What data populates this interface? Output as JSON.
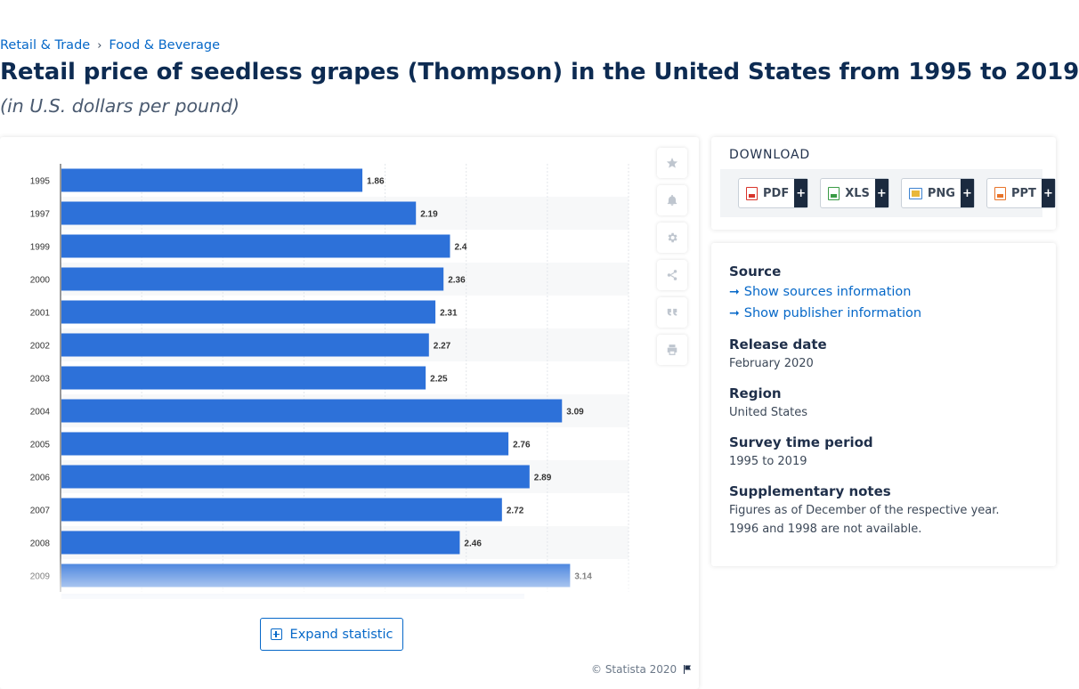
{
  "breadcrumb": {
    "items": [
      "Retail & Trade",
      "Food & Beverage"
    ],
    "separator": "›"
  },
  "page": {
    "title": "Retail price of seedless grapes (Thompson) in the United States from 1995 to 2019",
    "subtitle": "(in U.S. dollars per pound)"
  },
  "chart_data": {
    "type": "bar",
    "orientation": "horizontal",
    "categories": [
      "1995",
      "1997",
      "1999",
      "2000",
      "2001",
      "2002",
      "2003",
      "2004",
      "2005",
      "2006",
      "2007",
      "2008",
      "2009"
    ],
    "values": [
      1.86,
      2.19,
      2.4,
      2.36,
      2.31,
      2.27,
      2.25,
      3.09,
      2.76,
      2.89,
      2.72,
      2.46,
      3.14
    ],
    "value_labels": [
      "1.86",
      "2.19",
      "2.4",
      "2.36",
      "2.31",
      "2.27",
      "2.25",
      "3.09",
      "2.76",
      "2.89",
      "2.72",
      "2.46",
      "3.14"
    ],
    "xlim": [
      0,
      3.5
    ],
    "grid": true,
    "bar_color": "#2d71d9",
    "truncated": true
  },
  "toolbar": {
    "icons": [
      "star-icon",
      "bell-icon",
      "gear-icon",
      "share-icon",
      "quote-icon",
      "print-icon"
    ]
  },
  "expand_button": {
    "label": "Expand statistic"
  },
  "credit": {
    "text": "© Statista 2020"
  },
  "download": {
    "title": "DOWNLOAD",
    "buttons": [
      {
        "label": "PDF",
        "color": "#d9342b"
      },
      {
        "label": "XLS",
        "color": "#3a9b46"
      },
      {
        "label": "PNG",
        "color": "#3d82d0"
      },
      {
        "label": "PPT",
        "color": "#e8742a"
      }
    ],
    "more": "+"
  },
  "info": {
    "source_title": "Source",
    "show_sources": "Show sources information",
    "show_publisher": "Show publisher information",
    "release_title": "Release date",
    "release_value": "February 2020",
    "region_title": "Region",
    "region_value": "United States",
    "survey_title": "Survey time period",
    "survey_value": "1995 to 2019",
    "notes_title": "Supplementary notes",
    "notes_line1": "Figures as of December of the respective year.",
    "notes_line2": "1996 and 1998 are not available."
  },
  "colors": {
    "accent": "#0668c8",
    "title": "#0d2b52"
  }
}
